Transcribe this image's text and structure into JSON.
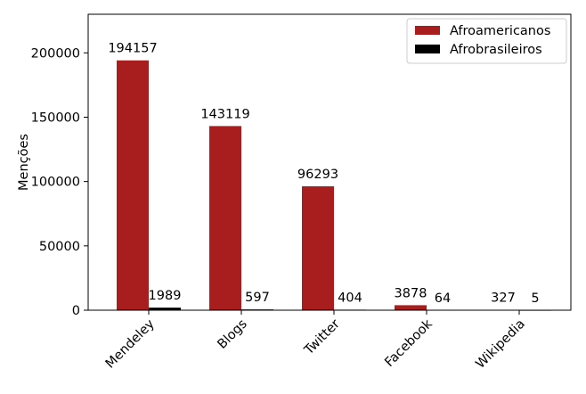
{
  "chart_data": {
    "type": "bar",
    "title": "",
    "xlabel": "",
    "ylabel": "Menções",
    "categories": [
      "Mendeley",
      "Blogs",
      "Twitter",
      "Facebook",
      "Wikipedia"
    ],
    "series": [
      {
        "name": "Afroamericanos",
        "color": "#a81d1d",
        "values": [
          194157,
          143119,
          96293,
          3878,
          327
        ]
      },
      {
        "name": "Afrobrasileiros",
        "color": "#000000",
        "values": [
          1989,
          597,
          404,
          64,
          5
        ]
      }
    ],
    "ylim": [
      0,
      230000
    ],
    "yticks": [
      0,
      50000,
      100000,
      150000,
      200000
    ],
    "ytick_labels": [
      "0",
      "50000",
      "100000",
      "150000",
      "200000"
    ],
    "legend_position": "top-right",
    "grid": false,
    "data_labels": true
  }
}
